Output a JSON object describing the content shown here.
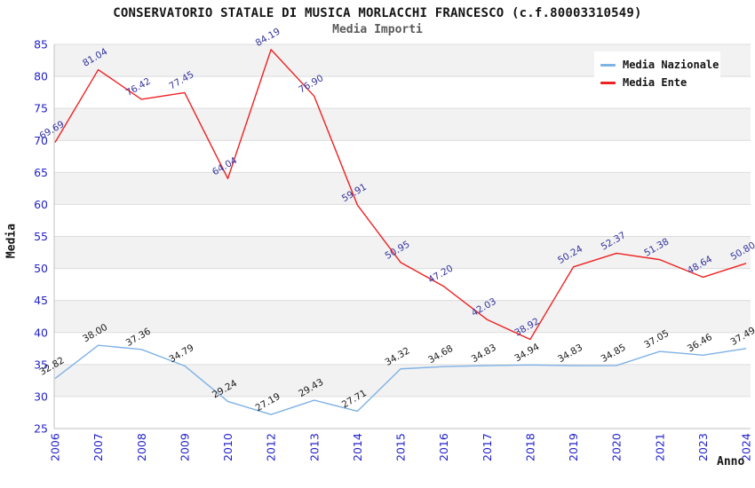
{
  "header": {
    "title": "CONSERVATORIO STATALE DI MUSICA MORLACCHI FRANCESCO (c.f.80003310549)",
    "subtitle": "Media Importi"
  },
  "legend": {
    "items": [
      {
        "label": "Media Nazionale",
        "color": "#7FB2E5"
      },
      {
        "label": "Media Ente",
        "color": "#EE2222"
      }
    ]
  },
  "axes": {
    "y_title": "Media",
    "x_title": "Anno"
  },
  "chart_data": {
    "type": "line",
    "title": "CONSERVATORIO STATALE DI MUSICA MORLACCHI FRANCESCO (c.f.80003310549)",
    "subtitle": "Media Importi",
    "xlabel": "Anno",
    "ylabel": "Media",
    "ylim": [
      25,
      85
    ],
    "y_tick_step": 5,
    "grid": true,
    "legend_position": "top-right",
    "categories": [
      "2006",
      "2007",
      "2008",
      "2009",
      "2010",
      "2012",
      "2013",
      "2014",
      "2015",
      "2016",
      "2017",
      "2018",
      "2019",
      "2020",
      "2021",
      "2023",
      "2024"
    ],
    "series": [
      {
        "name": "Media Nazionale",
        "color": "#7FB2E5",
        "label_color": "#1A1A1A",
        "values": [
          32.82,
          38.0,
          37.36,
          34.79,
          29.24,
          27.19,
          29.43,
          27.71,
          34.32,
          34.68,
          34.83,
          34.94,
          34.83,
          34.85,
          37.05,
          36.46,
          37.49
        ],
        "point_labels": [
          "32.82",
          "38.00",
          "37.36",
          "34.79",
          "29.24",
          "27.19",
          "29.43",
          "27.71",
          "34.32",
          "34.68",
          "34.83",
          "34.94",
          "34.83",
          "34.85",
          "37.05",
          "36.46",
          "37.49"
        ]
      },
      {
        "name": "Media Ente",
        "color": "#EE2222",
        "label_color": "#3333A0",
        "values": [
          69.69,
          81.04,
          76.42,
          77.45,
          64.04,
          84.19,
          76.9,
          59.91,
          50.95,
          47.2,
          42.03,
          38.92,
          50.24,
          52.37,
          51.38,
          48.64,
          50.8
        ],
        "point_labels": [
          "69.69",
          "81.04",
          "76.42",
          "77.45",
          "64.04",
          "84.19",
          "76.90",
          "59.91",
          "50.95",
          "47.20",
          "42.03",
          "38.92",
          "50.24",
          "52.37",
          "51.38",
          "48.64",
          "50.80"
        ]
      }
    ],
    "style": {
      "band_fill": "#F2F2F2",
      "grid_color": "#DCDCDC",
      "axis_color": "#C0C0C0",
      "tick_label_color": "#2222CC"
    }
  }
}
